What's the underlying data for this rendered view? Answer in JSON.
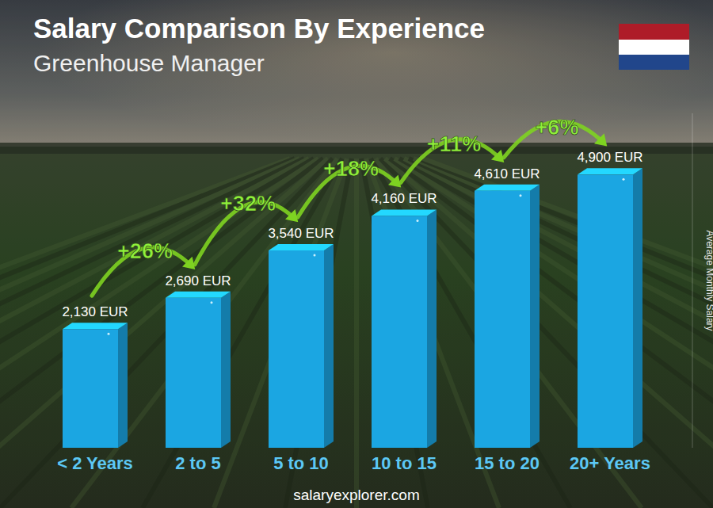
{
  "chart_data": {
    "type": "bar",
    "title": "Salary Comparison By Experience",
    "subtitle": "Greenhouse Manager",
    "ylabel": "Average Monthly Salary",
    "source": "salaryexplorer.com",
    "categories": [
      "< 2 Years",
      "2 to 5",
      "5 to 10",
      "10 to 15",
      "15 to 20",
      "20+ Years"
    ],
    "values": [
      2130,
      2690,
      3540,
      4160,
      4610,
      4900
    ],
    "value_labels": [
      "2,130 EUR",
      "2,690 EUR",
      "3,540 EUR",
      "4,160 EUR",
      "4,610 EUR",
      "4,900 EUR"
    ],
    "annotations": [
      "+26%",
      "+32%",
      "+18%",
      "+11%",
      "+6%"
    ],
    "color": "#1ba6e2",
    "ylim": [
      0,
      6000
    ],
    "data_labels": true,
    "tick_labels": "x",
    "grid": false
  }
}
